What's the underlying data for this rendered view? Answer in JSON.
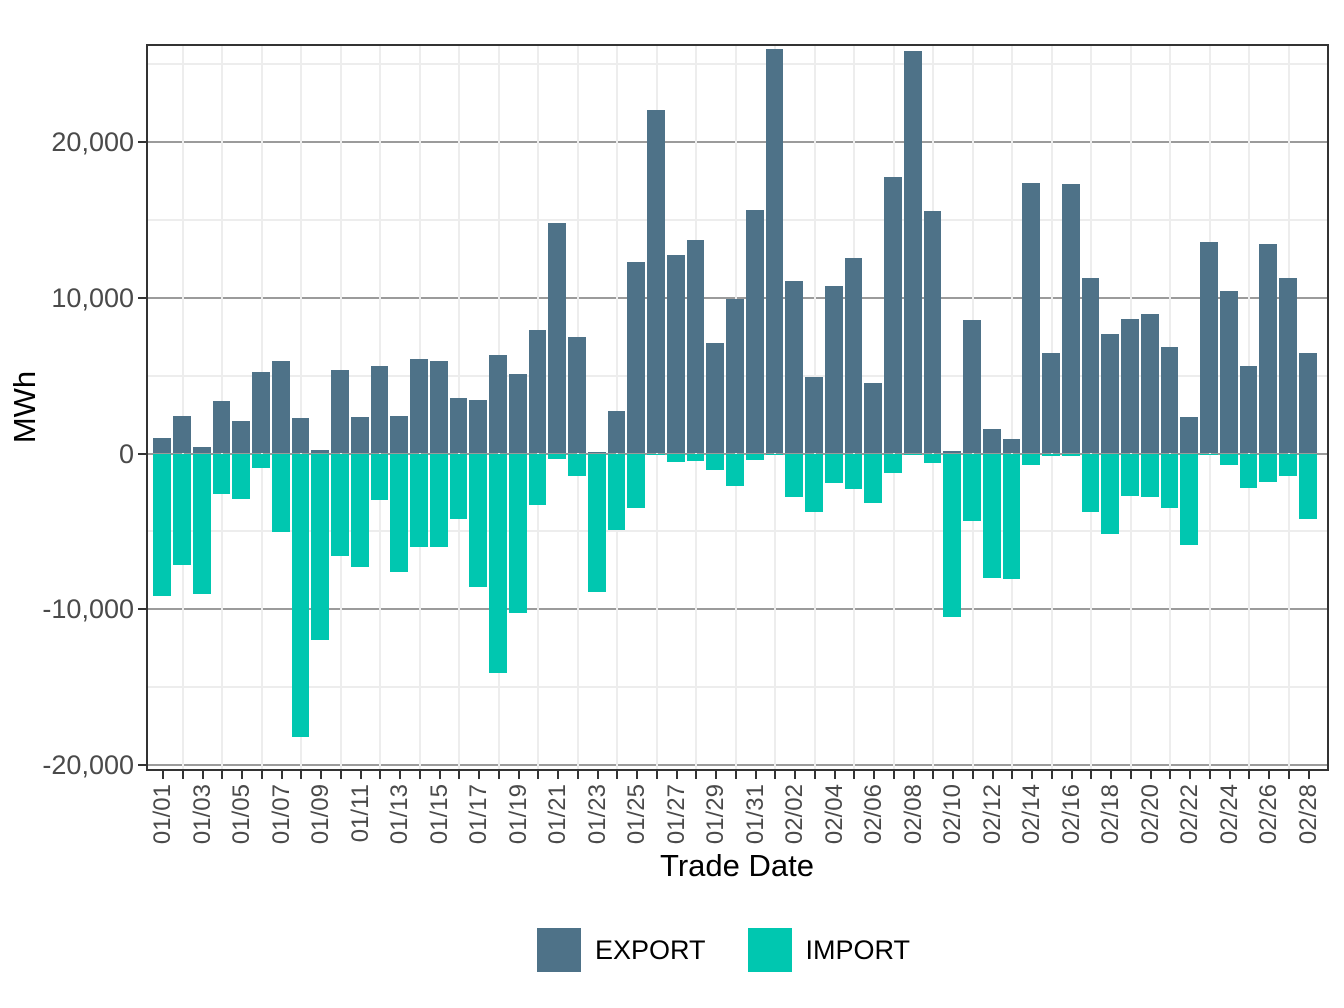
{
  "axes": {
    "y_title": "MWh",
    "x_title": "Trade Date",
    "y_ticks": [
      {
        "label": "20,000",
        "value": 20000
      },
      {
        "label": "10,000",
        "value": 10000
      },
      {
        "label": "0",
        "value": 0
      },
      {
        "label": "-10,000",
        "value": -10000
      },
      {
        "label": "-20,000",
        "value": -20000
      }
    ],
    "y_minor_ticks": [
      25000,
      15000,
      5000,
      -5000,
      -15000
    ]
  },
  "legend": {
    "items": [
      {
        "label": "EXPORT",
        "color": "#4E7288"
      },
      {
        "label": "IMPORT",
        "color": "#00C7B0"
      }
    ]
  },
  "colors": {
    "export": "#4E7288",
    "import": "#00C7B0",
    "grid_major": "#9b9b9b",
    "grid_minor": "#ededed",
    "panel_border": "#333333",
    "tick_text": "#4a4a4a"
  },
  "chart_data": {
    "type": "bar",
    "subtype": "diverging-grouped-by-sign",
    "title": "",
    "xlabel": "Trade Date",
    "ylabel": "MWh",
    "ylim": [
      -20400,
      26300
    ],
    "grid": true,
    "legend_position": "bottom",
    "x_label_every": 2,
    "categories": [
      "01/01",
      "01/02",
      "01/03",
      "01/04",
      "01/05",
      "01/06",
      "01/07",
      "01/08",
      "01/09",
      "01/10",
      "01/11",
      "01/12",
      "01/13",
      "01/14",
      "01/15",
      "01/16",
      "01/17",
      "01/18",
      "01/19",
      "01/20",
      "01/21",
      "01/22",
      "01/23",
      "01/24",
      "01/25",
      "01/26",
      "01/27",
      "01/28",
      "01/29",
      "01/30",
      "01/31",
      "02/01",
      "02/02",
      "02/03",
      "02/04",
      "02/05",
      "02/06",
      "02/07",
      "02/08",
      "02/09",
      "02/10",
      "02/11",
      "02/12",
      "02/13",
      "02/14",
      "02/15",
      "02/16",
      "02/17",
      "02/18",
      "02/19",
      "02/20",
      "02/21",
      "02/22",
      "02/23",
      "02/24",
      "02/25",
      "02/26",
      "02/27",
      "02/28"
    ],
    "series": [
      {
        "name": "EXPORT",
        "color": "#4E7288",
        "values": [
          1000,
          2400,
          390,
          3380,
          2100,
          5240,
          5970,
          2280,
          250,
          5370,
          2370,
          5600,
          2410,
          6100,
          5970,
          3570,
          3420,
          6330,
          5110,
          7940,
          14840,
          7500,
          100,
          2730,
          12310,
          22080,
          12760,
          13730,
          7130,
          9930,
          15650,
          25990,
          11090,
          4940,
          10730,
          12550,
          4550,
          17760,
          25880,
          15590,
          150,
          8580,
          1600,
          900,
          17410,
          6480,
          17330,
          11300,
          7660,
          8650,
          8950,
          6830,
          2330,
          13580,
          10450,
          5630,
          13470,
          11260,
          6480
        ]
      },
      {
        "name": "IMPORT",
        "color": "#00C7B0",
        "values": [
          -9150,
          -7150,
          -9000,
          -2620,
          -2900,
          -930,
          -5050,
          -18200,
          -11950,
          -6590,
          -7320,
          -2990,
          -7600,
          -5990,
          -6030,
          -4230,
          -8600,
          -14130,
          -10230,
          -3310,
          -350,
          -1450,
          -8880,
          -4920,
          -3500,
          -70,
          -520,
          -450,
          -1070,
          -2100,
          -400,
          -60,
          -2800,
          -3730,
          -1900,
          -2270,
          -3200,
          -1230,
          -50,
          -590,
          -10530,
          -4320,
          -8030,
          -8070,
          -740,
          -180,
          -160,
          -3740,
          -5190,
          -2750,
          -2820,
          -3530,
          -5880,
          -50,
          -740,
          -2240,
          -1810,
          -1430,
          -4210
        ]
      }
    ]
  }
}
